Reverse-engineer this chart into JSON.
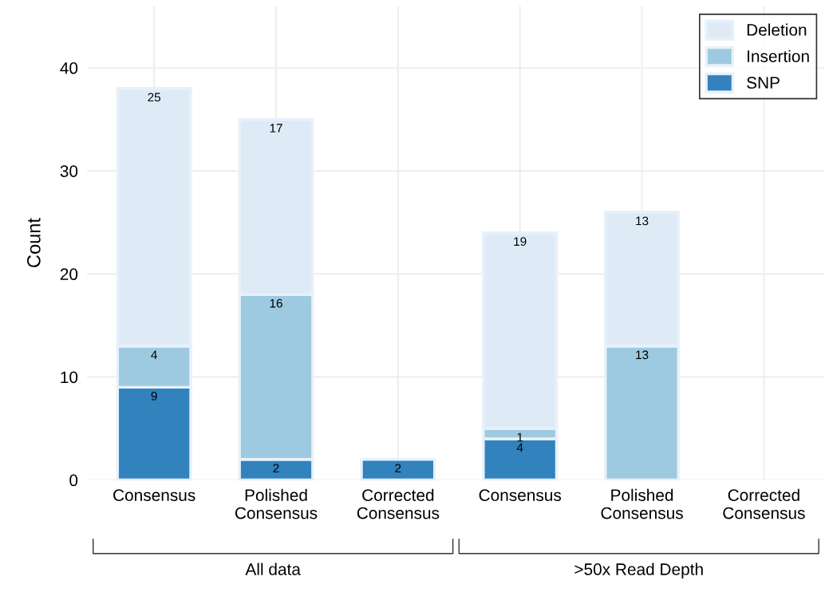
{
  "chart_data": {
    "type": "bar",
    "stacked": true,
    "ylabel": "Count",
    "categories": [
      "Consensus",
      "Polished\nConsensus",
      "Corrected\nConsensus",
      "Consensus",
      "Polished\nConsensus",
      "Corrected\nConsensus"
    ],
    "series": [
      {
        "name": "SNP",
        "color": "#3182bd",
        "values": [
          9,
          2,
          2,
          4,
          0,
          0
        ],
        "value_labels": [
          "9",
          "2",
          "2",
          "4",
          null,
          null
        ]
      },
      {
        "name": "Insertion",
        "color": "#9ecae1",
        "values": [
          4,
          16,
          0,
          1,
          13,
          0
        ],
        "value_labels": [
          "4",
          "16",
          null,
          "1",
          "13",
          null
        ]
      },
      {
        "name": "Deletion",
        "color": "#deebf7",
        "values": [
          25,
          17,
          0,
          19,
          13,
          0
        ],
        "value_labels": [
          "25",
          "17",
          null,
          "19",
          "13",
          null
        ]
      }
    ],
    "ylim": [
      0,
      46
    ],
    "yticks": [
      0,
      10,
      20,
      30,
      40
    ],
    "grid": true,
    "legend": "top right",
    "annotations": [
      "All data",
      ">50x Read Depth"
    ]
  }
}
